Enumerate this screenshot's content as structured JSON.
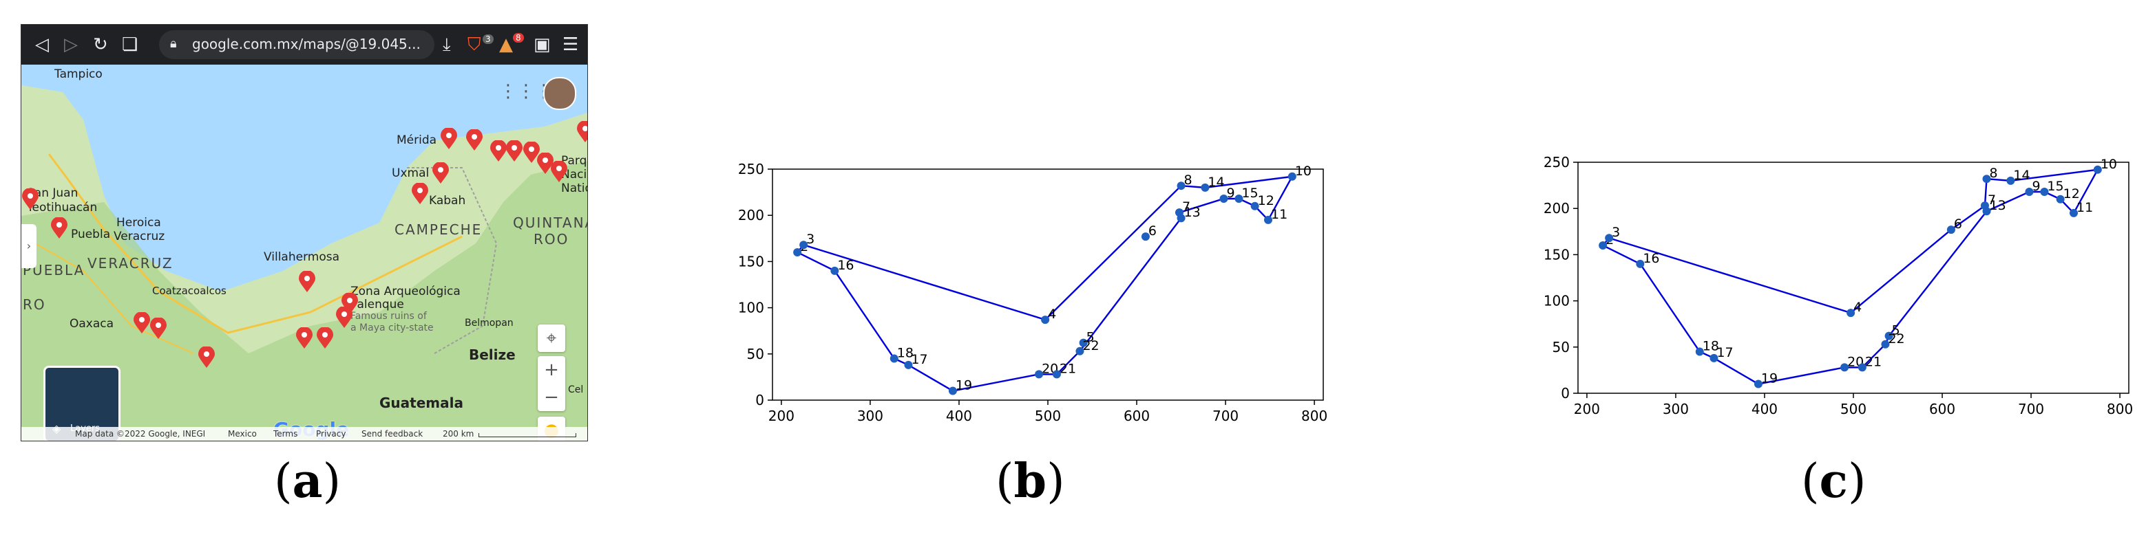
{
  "captions": {
    "a": "a",
    "b": "b",
    "c": "c"
  },
  "browser": {
    "url": "google.com.mx/maps/@19.045...",
    "shield_badge": "3",
    "alert_badge": "8",
    "layers_label": "Layers",
    "google_logo": "Google",
    "footer": {
      "map_data": "Map data ©2022 Google, INEGI",
      "country": "Mexico",
      "terms": "Terms",
      "privacy": "Privacy",
      "feedback": "Send feedback",
      "scale": "200 km"
    },
    "labels": {
      "tampico": "Tampico",
      "san_juan": "San Juan",
      "teotihuacan": "Teotihuacán",
      "heroica": "Heroica",
      "veracruz_city": "Veracruz",
      "puebla_city": "Puebla",
      "veracruz_state": "VERACRUZ",
      "puebla_state": "PUEBLA",
      "ro": "RO",
      "coatzacoalcos": "Coatzacoalcos",
      "villahermosa": "Villahermosa",
      "oaxaca": "Oaxaca",
      "zona1": "Zona Arqueológica",
      "zona2": "Palenque",
      "zona3": "Famous ruins of",
      "zona4": "a Maya city-state",
      "campeche": "CAMPECHE",
      "merida": "Mérida",
      "uxmal": "Uxmal",
      "kabah": "Kabah",
      "quintana": "QUINTANA",
      "roo": "ROO",
      "belmopan": "Belmopan",
      "belize": "Belize",
      "guatemala": "Guatemala",
      "parq": "Parq",
      "naci": "Naci",
      "natio": "Natio",
      "cel": "Cel"
    }
  },
  "chart_data": [
    {
      "type": "line",
      "title": "",
      "xlabel": "",
      "ylabel": "",
      "xlim": [
        190,
        810
      ],
      "ylim": [
        0,
        250
      ],
      "xticks": [
        200,
        300,
        400,
        500,
        600,
        700,
        800
      ],
      "yticks": [
        0,
        50,
        100,
        150,
        200,
        250
      ],
      "points": [
        {
          "id": "2",
          "x": 218,
          "y": 160
        },
        {
          "id": "3",
          "x": 225,
          "y": 168
        },
        {
          "id": "4",
          "x": 497,
          "y": 87
        },
        {
          "id": "5",
          "x": 540,
          "y": 62
        },
        {
          "id": "6",
          "x": 610,
          "y": 177
        },
        {
          "id": "7",
          "x": 648,
          "y": 203
        },
        {
          "id": "8",
          "x": 650,
          "y": 232
        },
        {
          "id": "9",
          "x": 698,
          "y": 218
        },
        {
          "id": "10",
          "x": 775,
          "y": 242
        },
        {
          "id": "11",
          "x": 748,
          "y": 195
        },
        {
          "id": "12",
          "x": 733,
          "y": 210
        },
        {
          "id": "13",
          "x": 650,
          "y": 197
        },
        {
          "id": "14",
          "x": 677,
          "y": 230
        },
        {
          "id": "15",
          "x": 715,
          "y": 218
        },
        {
          "id": "16",
          "x": 260,
          "y": 140
        },
        {
          "id": "17",
          "x": 343,
          "y": 38
        },
        {
          "id": "18",
          "x": 327,
          "y": 45
        },
        {
          "id": "19",
          "x": 393,
          "y": 10
        },
        {
          "id": "20",
          "x": 490,
          "y": 28
        },
        {
          "id": "21",
          "x": 510,
          "y": 28
        },
        {
          "id": "22",
          "x": 536,
          "y": 53
        }
      ],
      "route": [
        "2",
        "3",
        "4",
        "8",
        "14",
        "10",
        "11",
        "12",
        "15",
        "9",
        "7",
        "13",
        "22",
        "21",
        "20",
        "19",
        "17",
        "18",
        "16",
        "2"
      ]
    },
    {
      "type": "line",
      "title": "",
      "xlabel": "",
      "ylabel": "",
      "xlim": [
        190,
        810
      ],
      "ylim": [
        0,
        250
      ],
      "xticks": [
        200,
        300,
        400,
        500,
        600,
        700,
        800
      ],
      "yticks": [
        0,
        50,
        100,
        150,
        200,
        250
      ],
      "points": [
        {
          "id": "2",
          "x": 218,
          "y": 160
        },
        {
          "id": "3",
          "x": 225,
          "y": 168
        },
        {
          "id": "4",
          "x": 497,
          "y": 87
        },
        {
          "id": "5",
          "x": 540,
          "y": 62
        },
        {
          "id": "6",
          "x": 610,
          "y": 177
        },
        {
          "id": "7",
          "x": 648,
          "y": 203
        },
        {
          "id": "8",
          "x": 650,
          "y": 232
        },
        {
          "id": "9",
          "x": 698,
          "y": 218
        },
        {
          "id": "10",
          "x": 775,
          "y": 242
        },
        {
          "id": "11",
          "x": 748,
          "y": 195
        },
        {
          "id": "12",
          "x": 733,
          "y": 210
        },
        {
          "id": "13",
          "x": 650,
          "y": 197
        },
        {
          "id": "14",
          "x": 677,
          "y": 230
        },
        {
          "id": "15",
          "x": 715,
          "y": 218
        },
        {
          "id": "16",
          "x": 260,
          "y": 140
        },
        {
          "id": "17",
          "x": 343,
          "y": 38
        },
        {
          "id": "18",
          "x": 327,
          "y": 45
        },
        {
          "id": "19",
          "x": 393,
          "y": 10
        },
        {
          "id": "20",
          "x": 490,
          "y": 28
        },
        {
          "id": "21",
          "x": 510,
          "y": 28
        },
        {
          "id": "22",
          "x": 536,
          "y": 53
        }
      ],
      "route": [
        "2",
        "3",
        "4",
        "6",
        "7",
        "8",
        "14",
        "10",
        "11",
        "12",
        "15",
        "9",
        "13",
        "5",
        "22",
        "21",
        "20",
        "19",
        "17",
        "18",
        "16",
        "2"
      ]
    }
  ],
  "colors": {
    "route": "#0000dd",
    "marker": "#1f5fbf",
    "pin": "#e53935",
    "land": "#d4e8c0",
    "water": "#aadaff"
  }
}
